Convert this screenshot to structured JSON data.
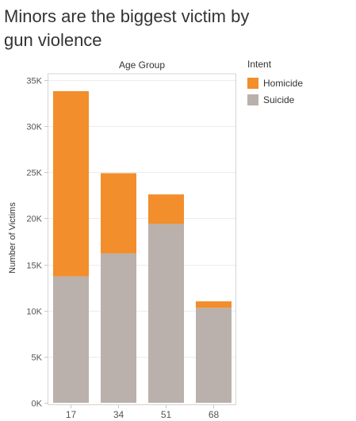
{
  "title": "Minors are the biggest victim by gun violence",
  "chart_data": {
    "type": "bar",
    "stacked": true,
    "header_label": "Age Group",
    "ylabel": "Number of Victims",
    "categories": [
      "17",
      "34",
      "51",
      "68"
    ],
    "series": [
      {
        "name": "Suicide",
        "values": [
          13700,
          16200,
          19400,
          10300
        ],
        "color": "#bab0ac"
      },
      {
        "name": "Homicide",
        "values": [
          20100,
          8700,
          3200,
          700
        ],
        "color": "#f28e2b"
      }
    ],
    "ylim": [
      0,
      35000
    ],
    "yticks": [
      0,
      5000,
      10000,
      15000,
      20000,
      25000,
      30000,
      35000
    ],
    "ytick_labels": [
      "0K",
      "5K",
      "10K",
      "15K",
      "20K",
      "25K",
      "30K",
      "35K"
    ],
    "grid": true,
    "legend": {
      "title": "Intent",
      "placement": "right",
      "items": [
        {
          "label": "Homicide",
          "color": "#f28e2b"
        },
        {
          "label": "Suicide",
          "color": "#bab0ac"
        }
      ]
    }
  }
}
